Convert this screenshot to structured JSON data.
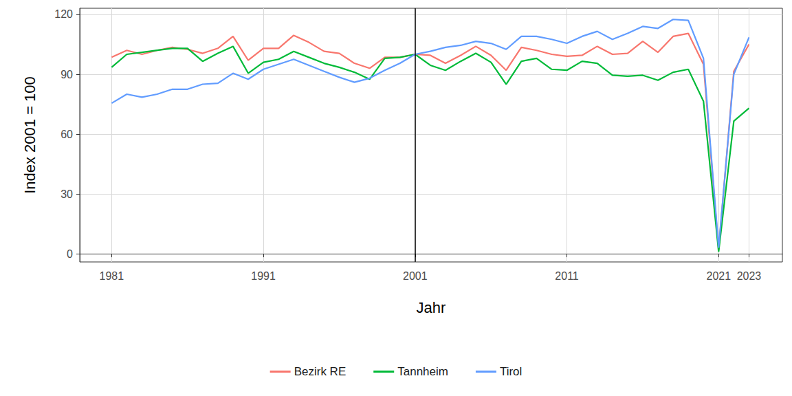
{
  "chart_data": {
    "type": "line",
    "x_label": "Jahr",
    "y_label": "Index 2001 = 100",
    "x": [
      1981,
      1982,
      1983,
      1984,
      1985,
      1986,
      1987,
      1988,
      1989,
      1990,
      1991,
      1992,
      1993,
      1994,
      1995,
      1996,
      1997,
      1998,
      1999,
      2000,
      2001,
      2002,
      2003,
      2004,
      2005,
      2006,
      2007,
      2008,
      2009,
      2010,
      2011,
      2012,
      2013,
      2014,
      2015,
      2016,
      2017,
      2018,
      2019,
      2020,
      2021,
      2022,
      2023
    ],
    "series": [
      {
        "name": "Bezirk RE",
        "color": "#F8766D",
        "values": [
          98.5,
          102,
          100,
          102,
          103.5,
          102.5,
          100.5,
          103,
          109,
          97,
          103,
          103,
          109.5,
          106,
          101.5,
          100.5,
          95.5,
          93,
          98.5,
          98.5,
          100,
          99.5,
          95.5,
          99.5,
          104,
          99.5,
          92,
          103.5,
          102,
          100,
          99,
          99.5,
          104,
          100,
          100.5,
          106.5,
          101,
          109,
          110.5,
          95,
          2,
          91.5,
          105
        ]
      },
      {
        "name": "Tannheim",
        "color": "#00BA38",
        "values": [
          93.5,
          100,
          101,
          102,
          103,
          103,
          96.5,
          100.5,
          104,
          90.5,
          96,
          97.5,
          101.5,
          98.5,
          95.5,
          93.5,
          91,
          87.5,
          98,
          98.5,
          100,
          94.5,
          92,
          96.5,
          100.5,
          96,
          85,
          96.5,
          98,
          92.5,
          92,
          96.5,
          95.5,
          89.5,
          89,
          89.5,
          87,
          91,
          92.5,
          76.5,
          1,
          66.5,
          73
        ]
      },
      {
        "name": "Tirol",
        "color": "#619CFF",
        "values": [
          75.5,
          80,
          78.5,
          80,
          82.5,
          82.5,
          85,
          85.5,
          90.5,
          87.5,
          92.5,
          95,
          97.5,
          94.5,
          91.5,
          88.5,
          86,
          88,
          92,
          95.5,
          100,
          101.5,
          103.5,
          104.5,
          106.5,
          105.5,
          102.5,
          109,
          109,
          107.5,
          105.5,
          109,
          111.5,
          107.5,
          110.5,
          114,
          113,
          117.5,
          117,
          98,
          3,
          90,
          108.5
        ]
      }
    ],
    "reference_x": 2001,
    "xlim": [
      1978.9,
      2025.2
    ],
    "xticks": [
      1981,
      1991,
      2001,
      2011,
      2021,
      2023
    ],
    "ylim": [
      -4.1,
      123.1
    ],
    "yticks": [
      0,
      30,
      60,
      90,
      120
    ],
    "grid": true,
    "legend": "bottom"
  }
}
